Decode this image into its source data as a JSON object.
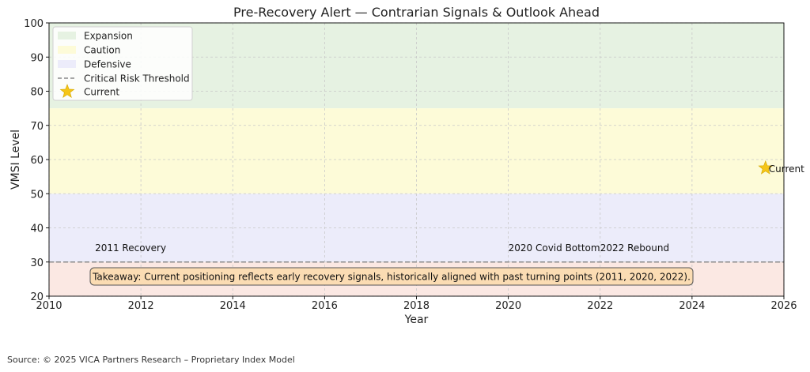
{
  "chart_data": {
    "type": "line",
    "title": "Pre-Recovery Alert — Contrarian Signals & Outlook Ahead",
    "xlabel": "Year",
    "ylabel": "VMSI Level",
    "xlim": [
      2010,
      2026
    ],
    "ylim": [
      20,
      100
    ],
    "x_ticks": [
      "2010",
      "2012",
      "2014",
      "2016",
      "2018",
      "2020",
      "2022",
      "2024",
      "2026"
    ],
    "y_ticks": [
      "20",
      "30",
      "40",
      "50",
      "60",
      "70",
      "80",
      "90",
      "100"
    ],
    "grid": true,
    "legend_position": "top-left",
    "zones": [
      {
        "name": "Expansion",
        "from": 75,
        "to": 100,
        "color": "#e6f2e2"
      },
      {
        "name": "Caution",
        "from": 50,
        "to": 75,
        "color": "#fdfbd8"
      },
      {
        "name": "Defensive",
        "from": 30,
        "to": 50,
        "color": "#ececfa"
      },
      {
        "name": "",
        "from": 20,
        "to": 30,
        "color": "#fbe8e3"
      }
    ],
    "threshold": {
      "name": "Critical Risk Threshold",
      "value": 30,
      "color": "#8a8a8a"
    },
    "current": {
      "name": "Current",
      "label": "Current",
      "x": 2025.6,
      "y": 57.5,
      "color": "#f5c518"
    },
    "annotations": [
      {
        "text": "2011 Recovery",
        "x": 2011.0,
        "y": 32
      },
      {
        "text": "2020 Covid Bottom",
        "x": 2020.0,
        "y": 32
      },
      {
        "text": "2022 Rebound",
        "x": 2022.0,
        "y": 32
      }
    ],
    "takeaway": "Takeaway: Current positioning reflects early recovery signals, historically aligned with past turning points (2011, 2020, 2022).",
    "legend": [
      "Expansion",
      "Caution",
      "Defensive",
      "Critical Risk Threshold",
      "Current"
    ]
  },
  "source": "Source: © 2025 VICA Partners Research – Proprietary Index Model"
}
